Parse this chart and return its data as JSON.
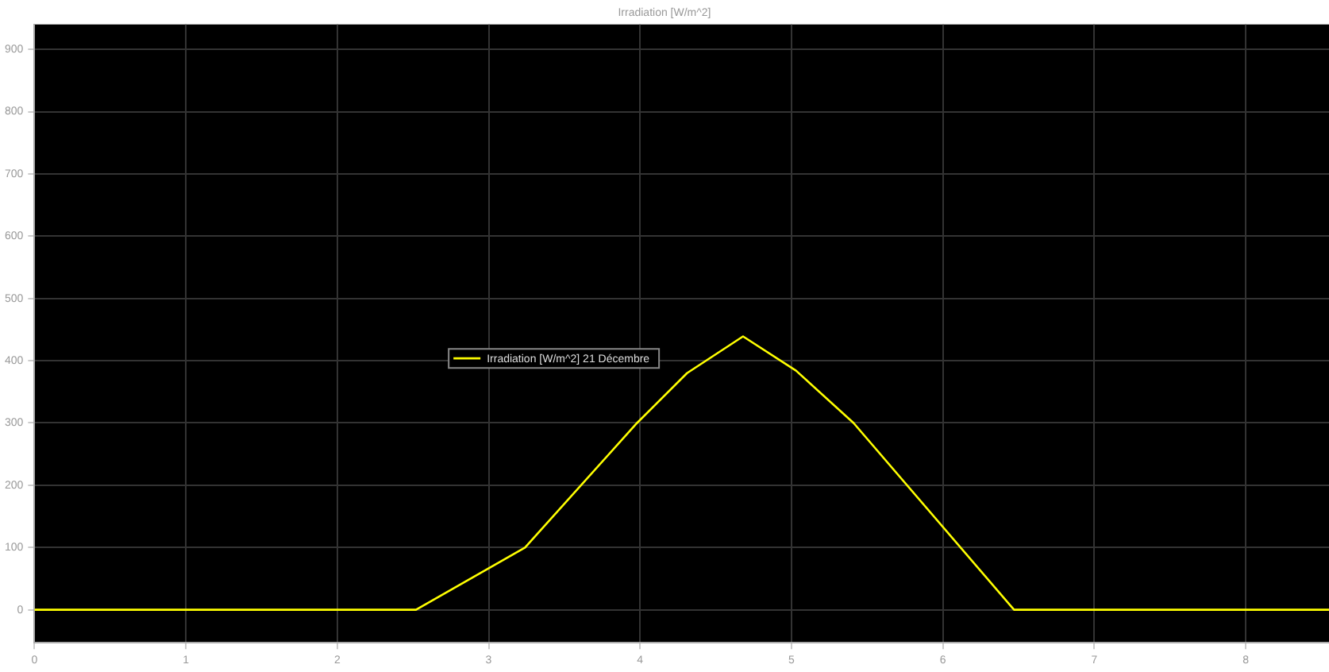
{
  "chart_data": {
    "type": "line",
    "title": "Irradiation [W/m^2]",
    "x": [
      0,
      2.52,
      3.24,
      3.98,
      4.31,
      4.68,
      5.03,
      5.41,
      6.47,
      8.55
    ],
    "series": [
      {
        "name": "Irradiation [W/m^2] 21 Décembre",
        "color": "#ffff00",
        "values": [
          0,
          0,
          100,
          300,
          380,
          439,
          384,
          300,
          0,
          0
        ]
      }
    ],
    "xlim": [
      0,
      8.55
    ],
    "xticks": [
      0,
      1,
      2,
      3,
      4,
      5,
      6,
      7,
      8
    ],
    "ylim": [
      -53,
      940
    ],
    "yticks": [
      0,
      100,
      200,
      300,
      400,
      500,
      600,
      700,
      800,
      900
    ],
    "grid": true,
    "legend": "center left",
    "marker": "none",
    "line_style": "solid"
  }
}
